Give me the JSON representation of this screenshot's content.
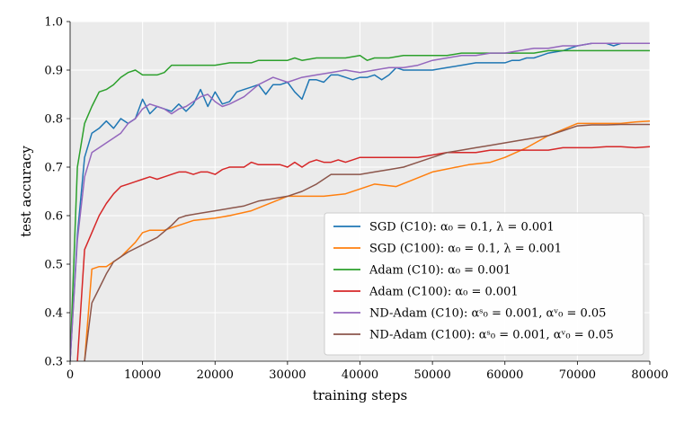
{
  "chart_data": {
    "type": "line",
    "title": "",
    "xlabel": "training steps",
    "ylabel": "test accuracy",
    "xlim": [
      0,
      80000
    ],
    "ylim": [
      0.3,
      1.0
    ],
    "xticks": [
      0,
      10000,
      20000,
      30000,
      40000,
      50000,
      60000,
      70000,
      80000
    ],
    "xtick_labels": [
      "0",
      "10000",
      "20000",
      "30000",
      "40000",
      "50000",
      "60000",
      "70000",
      "80000"
    ],
    "yticks": [
      0.3,
      0.4,
      0.5,
      0.6,
      0.7,
      0.8,
      0.9,
      1.0
    ],
    "ytick_labels": [
      "0.3",
      "0.4",
      "0.5",
      "0.6",
      "0.7",
      "0.8",
      "0.9",
      "1.0"
    ],
    "grid": true,
    "legend_position": "bottom-right",
    "series": [
      {
        "name": "SGD (C10)",
        "label": "SGD (C10): α₀ = 0.1, λ = 0.001",
        "color": "#1f77b4",
        "x": [
          0,
          1000,
          2000,
          3000,
          4000,
          5000,
          6000,
          7000,
          8000,
          9000,
          10000,
          11000,
          12000,
          13000,
          14000,
          15000,
          16000,
          17000,
          18000,
          19000,
          20000,
          21000,
          22000,
          23000,
          24000,
          25000,
          26000,
          27000,
          28000,
          29000,
          30000,
          31000,
          32000,
          33000,
          34000,
          35000,
          36000,
          37000,
          38000,
          39000,
          40000,
          41000,
          42000,
          43000,
          44000,
          45000,
          46000,
          48000,
          50000,
          52000,
          54000,
          56000,
          58000,
          60000,
          61000,
          62000,
          63000,
          64000,
          65000,
          66000,
          68000,
          70000,
          72000,
          74000,
          75000,
          76000,
          77000,
          78000,
          80000
        ],
        "values": [
          0.3,
          0.56,
          0.72,
          0.77,
          0.78,
          0.795,
          0.78,
          0.8,
          0.79,
          0.8,
          0.84,
          0.81,
          0.825,
          0.82,
          0.815,
          0.83,
          0.815,
          0.83,
          0.86,
          0.825,
          0.855,
          0.83,
          0.835,
          0.855,
          0.86,
          0.865,
          0.87,
          0.85,
          0.87,
          0.87,
          0.875,
          0.855,
          0.84,
          0.88,
          0.88,
          0.875,
          0.89,
          0.89,
          0.885,
          0.88,
          0.885,
          0.885,
          0.89,
          0.88,
          0.89,
          0.905,
          0.9,
          0.9,
          0.9,
          0.905,
          0.91,
          0.915,
          0.915,
          0.915,
          0.92,
          0.92,
          0.925,
          0.925,
          0.93,
          0.935,
          0.94,
          0.95,
          0.955,
          0.955,
          0.95,
          0.955,
          0.955,
          0.955,
          0.955
        ]
      },
      {
        "name": "SGD (C100)",
        "label": "SGD (C100): α₀ = 0.1, λ = 0.001",
        "color": "#ff7f0e",
        "x": [
          2000,
          3000,
          4000,
          5000,
          6000,
          7000,
          8000,
          9000,
          10000,
          11000,
          12000,
          13000,
          14000,
          15000,
          17000,
          20000,
          22000,
          25000,
          30000,
          33000,
          35000,
          38000,
          42000,
          45000,
          50000,
          55000,
          58000,
          60000,
          63000,
          66000,
          70000,
          73000,
          76000,
          78000,
          80000
        ],
        "values": [
          0.3,
          0.49,
          0.495,
          0.495,
          0.505,
          0.515,
          0.53,
          0.545,
          0.565,
          0.57,
          0.57,
          0.57,
          0.575,
          0.58,
          0.59,
          0.595,
          0.6,
          0.61,
          0.64,
          0.64,
          0.64,
          0.645,
          0.665,
          0.66,
          0.69,
          0.705,
          0.71,
          0.72,
          0.74,
          0.765,
          0.79,
          0.79,
          0.79,
          0.793,
          0.795
        ]
      },
      {
        "name": "Adam (C10)",
        "label": "Adam (C10): α₀ = 0.001",
        "color": "#2ca02c",
        "x": [
          0,
          1000,
          2000,
          3000,
          4000,
          5000,
          6000,
          7000,
          8000,
          9000,
          10000,
          11000,
          12000,
          13000,
          14000,
          15000,
          16000,
          17000,
          18000,
          19000,
          20000,
          22000,
          24000,
          25000,
          26000,
          28000,
          30000,
          31000,
          32000,
          34000,
          36000,
          38000,
          40000,
          41000,
          42000,
          44000,
          46000,
          48000,
          50000,
          52000,
          54000,
          56000,
          58000,
          60000,
          62000,
          64000,
          66000,
          68000,
          70000,
          72000,
          74000,
          76000,
          78000,
          80000
        ],
        "values": [
          0.3,
          0.7,
          0.79,
          0.825,
          0.855,
          0.86,
          0.87,
          0.885,
          0.895,
          0.9,
          0.89,
          0.89,
          0.89,
          0.895,
          0.91,
          0.91,
          0.91,
          0.91,
          0.91,
          0.91,
          0.91,
          0.915,
          0.915,
          0.915,
          0.92,
          0.92,
          0.92,
          0.925,
          0.92,
          0.925,
          0.925,
          0.925,
          0.93,
          0.92,
          0.925,
          0.925,
          0.93,
          0.93,
          0.93,
          0.93,
          0.935,
          0.935,
          0.935,
          0.935,
          0.935,
          0.935,
          0.94,
          0.94,
          0.94,
          0.94,
          0.94,
          0.94,
          0.94,
          0.94
        ]
      },
      {
        "name": "Adam (C100)",
        "label": "Adam (C100): α₀ = 0.001",
        "color": "#d62728",
        "x": [
          1000,
          2000,
          3000,
          4000,
          5000,
          6000,
          7000,
          8000,
          9000,
          10000,
          11000,
          12000,
          13000,
          14000,
          15000,
          16000,
          17000,
          18000,
          19000,
          20000,
          21000,
          22000,
          23000,
          24000,
          25000,
          26000,
          27000,
          28000,
          29000,
          30000,
          31000,
          32000,
          33000,
          34000,
          35000,
          36000,
          37000,
          38000,
          39000,
          40000,
          41000,
          42000,
          43000,
          44000,
          45000,
          46000,
          48000,
          50000,
          52000,
          54000,
          56000,
          58000,
          60000,
          62000,
          64000,
          66000,
          68000,
          70000,
          72000,
          74000,
          76000,
          78000,
          80000
        ],
        "values": [
          0.3,
          0.53,
          0.565,
          0.6,
          0.625,
          0.645,
          0.66,
          0.665,
          0.67,
          0.675,
          0.68,
          0.675,
          0.68,
          0.685,
          0.69,
          0.69,
          0.685,
          0.69,
          0.69,
          0.685,
          0.695,
          0.7,
          0.7,
          0.7,
          0.71,
          0.705,
          0.705,
          0.705,
          0.705,
          0.7,
          0.71,
          0.7,
          0.71,
          0.715,
          0.71,
          0.71,
          0.715,
          0.71,
          0.715,
          0.72,
          0.72,
          0.72,
          0.72,
          0.72,
          0.72,
          0.72,
          0.72,
          0.725,
          0.73,
          0.73,
          0.73,
          0.735,
          0.735,
          0.735,
          0.735,
          0.735,
          0.74,
          0.74,
          0.74,
          0.742,
          0.742,
          0.74,
          0.742
        ]
      },
      {
        "name": "ND-Adam (C10)",
        "label": "ND-Adam (C10): αˢ₀ = 0.001, αᵛ₀ = 0.05",
        "color": "#9467bd",
        "x": [
          0,
          1000,
          2000,
          3000,
          4000,
          5000,
          6000,
          7000,
          8000,
          9000,
          10000,
          11000,
          12000,
          13000,
          14000,
          15000,
          16000,
          17000,
          18000,
          19000,
          20000,
          21000,
          22000,
          24000,
          26000,
          28000,
          30000,
          32000,
          34000,
          36000,
          38000,
          40000,
          42000,
          44000,
          46000,
          48000,
          50000,
          52000,
          54000,
          56000,
          58000,
          60000,
          62000,
          64000,
          66000,
          68000,
          70000,
          72000,
          74000,
          76000,
          78000,
          80000
        ],
        "values": [
          0.3,
          0.55,
          0.68,
          0.73,
          0.74,
          0.75,
          0.76,
          0.77,
          0.79,
          0.8,
          0.82,
          0.83,
          0.825,
          0.82,
          0.81,
          0.82,
          0.825,
          0.835,
          0.845,
          0.85,
          0.835,
          0.825,
          0.83,
          0.845,
          0.87,
          0.885,
          0.875,
          0.885,
          0.89,
          0.895,
          0.9,
          0.895,
          0.9,
          0.905,
          0.905,
          0.91,
          0.92,
          0.925,
          0.93,
          0.93,
          0.935,
          0.935,
          0.94,
          0.945,
          0.945,
          0.95,
          0.95,
          0.955,
          0.955,
          0.955,
          0.955,
          0.955
        ]
      },
      {
        "name": "ND-Adam (C100)",
        "label": "ND-Adam (C100): αˢ₀ = 0.001, αᵛ₀ = 0.05",
        "color": "#8c564b",
        "x": [
          2000,
          3000,
          4000,
          5000,
          6000,
          7000,
          8000,
          10000,
          12000,
          14000,
          15000,
          16000,
          18000,
          20000,
          22000,
          24000,
          26000,
          28000,
          30000,
          32000,
          34000,
          36000,
          38000,
          40000,
          42000,
          44000,
          46000,
          48000,
          50000,
          52000,
          54000,
          56000,
          58000,
          60000,
          62000,
          64000,
          66000,
          68000,
          70000,
          72000,
          74000,
          76000,
          78000,
          80000
        ],
        "values": [
          0.3,
          0.42,
          0.45,
          0.48,
          0.505,
          0.515,
          0.525,
          0.54,
          0.555,
          0.58,
          0.595,
          0.6,
          0.605,
          0.61,
          0.615,
          0.62,
          0.63,
          0.635,
          0.64,
          0.65,
          0.665,
          0.685,
          0.685,
          0.685,
          0.69,
          0.695,
          0.7,
          0.71,
          0.72,
          0.73,
          0.735,
          0.74,
          0.745,
          0.75,
          0.755,
          0.76,
          0.765,
          0.775,
          0.785,
          0.787,
          0.787,
          0.788,
          0.788,
          0.788
        ]
      }
    ]
  }
}
